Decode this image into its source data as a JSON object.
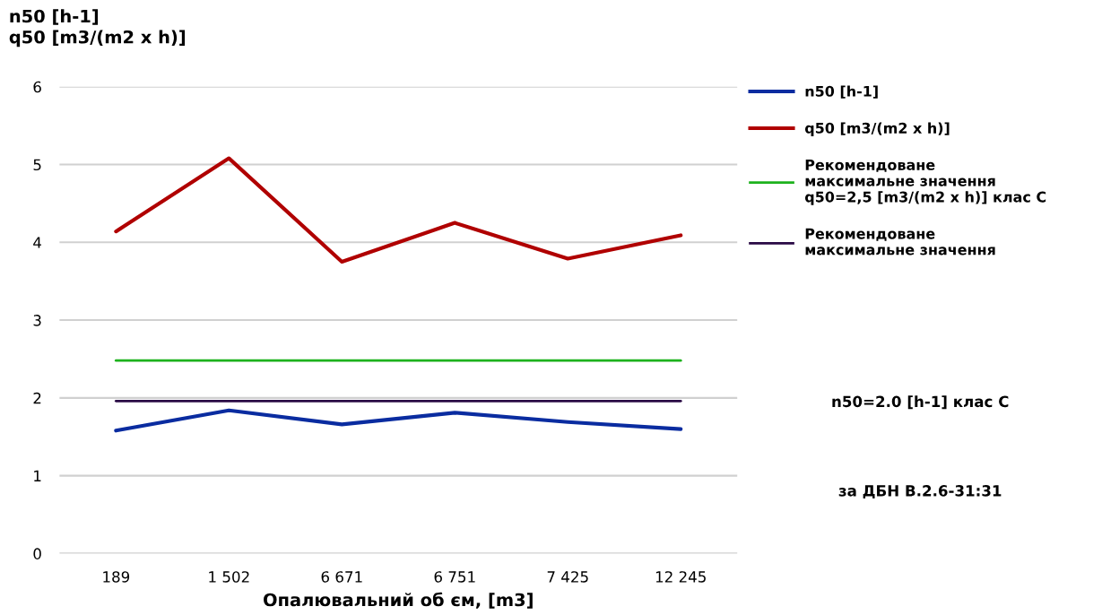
{
  "chart_data": {
    "type": "line",
    "ylabel": "n50 [h-1]\nq50 [m3/(m2 x h)]",
    "xlabel": "Опалювальний об єм, [m3]",
    "categories": [
      "189",
      "1 502",
      "6 671",
      "6 751",
      "7 425",
      "12 245"
    ],
    "series": [
      {
        "name": "n50 [h-1]",
        "color": "#0a2ca0",
        "values": [
          1.58,
          1.84,
          1.66,
          1.81,
          1.69,
          1.6
        ]
      },
      {
        "name": "q50 [m3/(m2 x h)]",
        "color": "#b00000",
        "values": [
          4.14,
          5.08,
          3.75,
          4.25,
          3.79,
          4.09
        ]
      },
      {
        "name": "Рекомендоване\nмаксимальне значення\nq50=2,5 [m3/(m2 x h)] клас С",
        "color": "#1db21d",
        "values": [
          2.48,
          2.48,
          2.48,
          2.48,
          2.48,
          2.48
        ]
      },
      {
        "name": "Рекомендоване\nмаксимальне значення",
        "color": "#2a0a45",
        "values": [
          1.96,
          1.96,
          1.96,
          1.96,
          1.96,
          1.96
        ]
      }
    ],
    "annotations": [
      "n50=2.0 [h-1] клас С",
      "за ДБН В.2.6-31:31"
    ],
    "ylim": [
      0,
      6
    ],
    "yticks": [
      0,
      1,
      2,
      3,
      4,
      5,
      6
    ],
    "grid": "y",
    "legend": "right",
    "marker": "none",
    "line_style": "solid"
  }
}
